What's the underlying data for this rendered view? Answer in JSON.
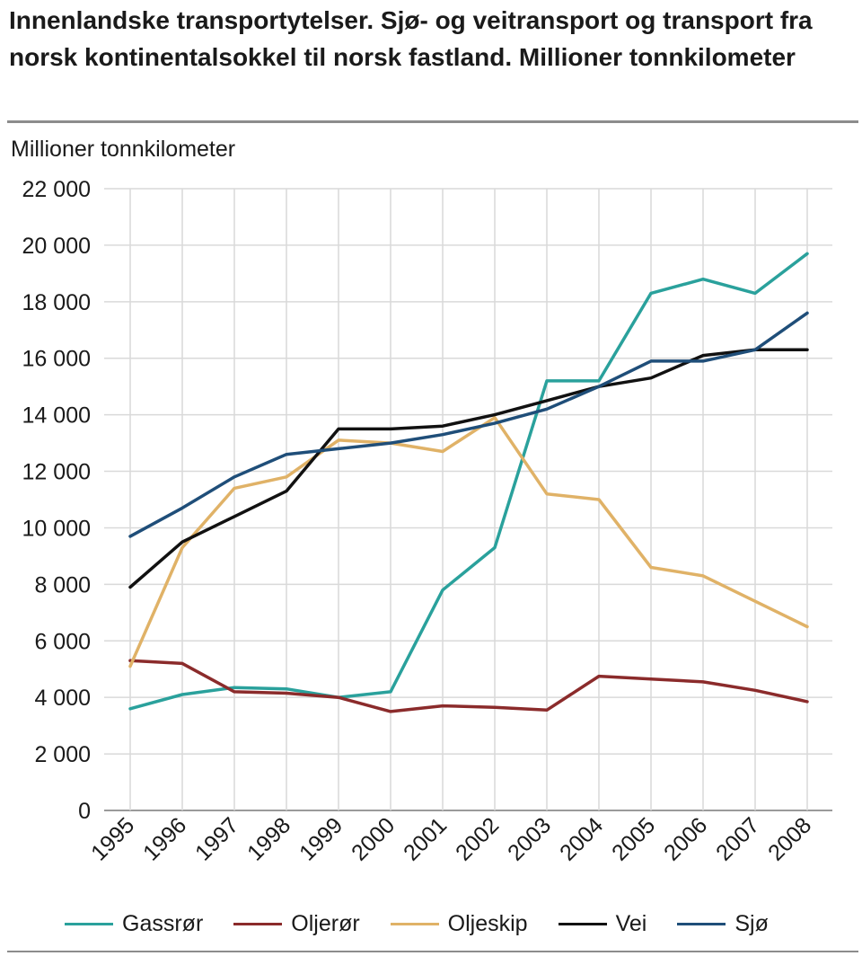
{
  "title": "Innenlandske transportytelser. Sjø- og veitransport og transport fra norsk kontinentalsokkel til norsk fastland. Millioner tonnkilometer",
  "chart_data": {
    "type": "line",
    "title": "Innenlandske transportytelser. Sjø- og veitransport og transport fra norsk kontinentalsokkel til norsk fastland. Millioner tonnkilometer",
    "ylabel": "Millioner tonnkilometer",
    "xlabel": "",
    "ylim": [
      0,
      22000
    ],
    "grid": true,
    "legend_position": "bottom",
    "categories": [
      "1995",
      "1996",
      "1997",
      "1998",
      "1999",
      "2000",
      "2001",
      "2002",
      "2003",
      "2004",
      "2005",
      "2006",
      "2007",
      "2008"
    ],
    "y_ticks": [
      {
        "value": 0,
        "label": "0"
      },
      {
        "value": 2000,
        "label": "2 000"
      },
      {
        "value": 4000,
        "label": "4 000"
      },
      {
        "value": 6000,
        "label": "6 000"
      },
      {
        "value": 8000,
        "label": "8 000"
      },
      {
        "value": 10000,
        "label": "10 000"
      },
      {
        "value": 12000,
        "label": "12 000"
      },
      {
        "value": 14000,
        "label": "14 000"
      },
      {
        "value": 16000,
        "label": "16 000"
      },
      {
        "value": 18000,
        "label": "18 000"
      },
      {
        "value": 20000,
        "label": "20 000"
      },
      {
        "value": 22000,
        "label": "22 000"
      }
    ],
    "series": [
      {
        "name": "Gassrør",
        "color": "#2aa19c",
        "values": [
          3600,
          4100,
          4350,
          4300,
          4000,
          4200,
          7800,
          9300,
          15200,
          15200,
          18300,
          18800,
          18300,
          19700
        ]
      },
      {
        "name": "Oljerør",
        "color": "#8b2b2b",
        "values": [
          5300,
          5200,
          4200,
          4150,
          4000,
          3500,
          3700,
          3650,
          3550,
          4750,
          4650,
          4550,
          4250,
          3850
        ]
      },
      {
        "name": "Oljeskip",
        "color": "#e0b267",
        "values": [
          5100,
          9300,
          11400,
          11800,
          13100,
          13000,
          12700,
          13900,
          11200,
          11000,
          8600,
          8300,
          7400,
          6500
        ]
      },
      {
        "name": "Vei",
        "color": "#111111",
        "values": [
          7900,
          9500,
          10400,
          11300,
          13500,
          13500,
          13600,
          14000,
          14500,
          15000,
          15300,
          16100,
          16300,
          16300
        ]
      },
      {
        "name": "Sjø",
        "color": "#1f4e79",
        "values": [
          9700,
          10700,
          11800,
          12600,
          12800,
          13000,
          13300,
          13700,
          14200,
          15000,
          15900,
          15900,
          16300,
          17600
        ]
      }
    ]
  }
}
